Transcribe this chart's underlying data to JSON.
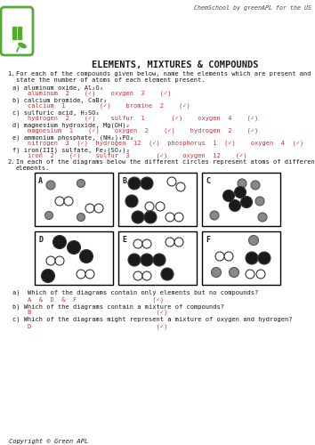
{
  "title": "ELEMENTS, MIXTURES & COMPOUNDS",
  "header_text": "ChemSchool by greenAPL for the US",
  "background_color": "#ffffff",
  "text_color": "#1a1a1a",
  "answer_color": "#cc3333",
  "green_color": "#55aa33",
  "copyright": "Copyright © Green APL",
  "q1_intro_1": "For each of the compounds given below, name the elements which are present and",
  "q1_intro_2": "state the number of atoms of each element present.",
  "q1_items": [
    {
      "label": "a) aluminum oxide, Al₂O₃",
      "ans": "    aluminum  2    (✓)    oxygen  3    (✓)"
    },
    {
      "label": "b) calcium bromide, CaBr₂",
      "ans": "    calcium  1         (✓)    bromine  2    (✓)"
    },
    {
      "label": "c) sulfuric acid, H₂SO₄",
      "ans": "    hydrogen  2    (✓)    sulfur  1       (✓)    oxygen  4    (✓)"
    },
    {
      "label": "d) magnesium hydroxide, Mg(OH)₂",
      "ans": "    magnesium  1    (✓)    oxygen  2    (✓)    hydrogen  2    (✓)"
    },
    {
      "label": "e) ammonium phosphate, (NH₄)₃PO₄",
      "ans": "    nitrogen  3  (✓)  hydrogen  12  (✓)  phosphorus  1  (✓)    oxygen  4  (✓)"
    },
    {
      "label": "f) iron(III) sulfate, Fe₂(SO₄)₃",
      "ans": "    iron  2    (✓)    sulfur  3       (✓)    oxygen  12    (✓)"
    }
  ],
  "q2_intro_1": "In each of the diagrams below the different circles represent atoms of different",
  "q2_intro_2": "elements.",
  "q2a_q": "a)  Which of the diagrams contain only elements but no compounds?",
  "q2a_a": "    A  &  D  &  F                    (✓)",
  "q2b_q": "b) Which of the diagrams contain a mixture of compounds?",
  "q2b_a": "    B                                 (✓)",
  "q2c_q": "c) Which of the diagrams might represent a mixture of oxygen and hydrogen?",
  "q2c_a": "    D                                 (✓)"
}
